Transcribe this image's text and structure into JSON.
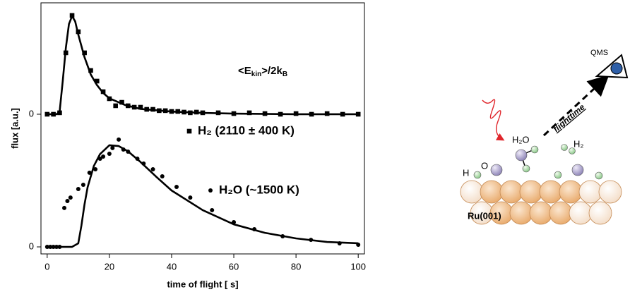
{
  "chart_data": {
    "type": "scatter",
    "x_label": "time of flight [  s]",
    "y_label": "flux [a.u.]",
    "annotation": [
      "<E",
      "kin",
      ">/2k",
      "B"
    ],
    "xlim": [
      -2,
      102
    ],
    "ylim": [
      -0.053,
      1.84
    ],
    "xticks": [
      0,
      20,
      40,
      60,
      80,
      100
    ],
    "yticks": [
      {
        "value": 0,
        "label": "0"
      },
      {
        "value": 1,
        "label": "0"
      }
    ],
    "series": [
      {
        "name": "H₂ (2110 ± 400 K)",
        "marker": "square",
        "color": "#000000",
        "x": [
          0,
          2,
          4,
          6,
          8,
          10,
          12,
          14,
          16,
          18,
          20,
          22,
          24,
          26,
          28,
          30,
          32,
          34,
          36,
          38,
          40,
          42,
          44,
          46,
          48,
          50,
          55,
          60,
          65,
          70,
          75,
          80,
          85,
          90,
          95,
          100
        ],
        "values": [
          1.0,
          1.0,
          1.011,
          1.463,
          1.745,
          1.622,
          1.463,
          1.33,
          1.25,
          1.17,
          1.117,
          1.064,
          1.09,
          1.064,
          1.053,
          1.053,
          1.037,
          1.037,
          1.027,
          1.027,
          1.021,
          1.021,
          1.016,
          1.011,
          1.016,
          1.011,
          1.011,
          1.005,
          1.011,
          1.005,
          1.0,
          1.005,
          1.0,
          1.005,
          1.0,
          1.0
        ]
      },
      {
        "marker": "line",
        "color": "#000000",
        "x": [
          0,
          3,
          4,
          5,
          6,
          7,
          8,
          9,
          10,
          12,
          14,
          16,
          18,
          20,
          25,
          30,
          40,
          50,
          60,
          80,
          100
        ],
        "values": [
          1.0,
          1.0,
          1.02,
          1.25,
          1.5,
          1.68,
          1.74,
          1.7,
          1.6,
          1.43,
          1.3,
          1.22,
          1.16,
          1.12,
          1.07,
          1.04,
          1.02,
          1.01,
          1.005,
          1.0,
          1.0
        ]
      },
      {
        "name": "H₂O (~1500 K)",
        "marker": "circle",
        "color": "#000000",
        "x": [
          0,
          1,
          2,
          3,
          4,
          5.5,
          6.5,
          7.5,
          10,
          11.6,
          13.6,
          15.5,
          17,
          18,
          20,
          21,
          23,
          24.5,
          26,
          29,
          31,
          34,
          37,
          41.6,
          46,
          53,
          60,
          66.6,
          75.7,
          84.8,
          94,
          100
        ],
        "values": [
          0,
          0,
          0,
          0,
          0,
          0.293,
          0.346,
          0.372,
          0.436,
          0.468,
          0.559,
          0.585,
          0.665,
          0.681,
          0.702,
          0.745,
          0.809,
          0.734,
          0.718,
          0.665,
          0.628,
          0.585,
          0.532,
          0.452,
          0.372,
          0.277,
          0.186,
          0.133,
          0.08,
          0.053,
          0.027,
          0.016
        ]
      },
      {
        "marker": "line",
        "color": "#000000",
        "x": [
          0,
          8,
          10,
          11,
          12,
          13,
          15,
          17,
          20,
          23,
          26,
          30,
          35,
          40,
          50,
          60,
          70,
          80,
          90,
          100
        ],
        "values": [
          0,
          0,
          0.027,
          0.16,
          0.32,
          0.45,
          0.61,
          0.7,
          0.766,
          0.76,
          0.72,
          0.64,
          0.53,
          0.425,
          0.277,
          0.17,
          0.106,
          0.064,
          0.037,
          0.027
        ]
      }
    ]
  },
  "diagram": {
    "qms": "QMS",
    "flight": "flighttime",
    "water": "H₂O",
    "hydrogen": "H₂",
    "oxygen": "O",
    "h_atom": "H",
    "surface": "Ru(001)"
  }
}
